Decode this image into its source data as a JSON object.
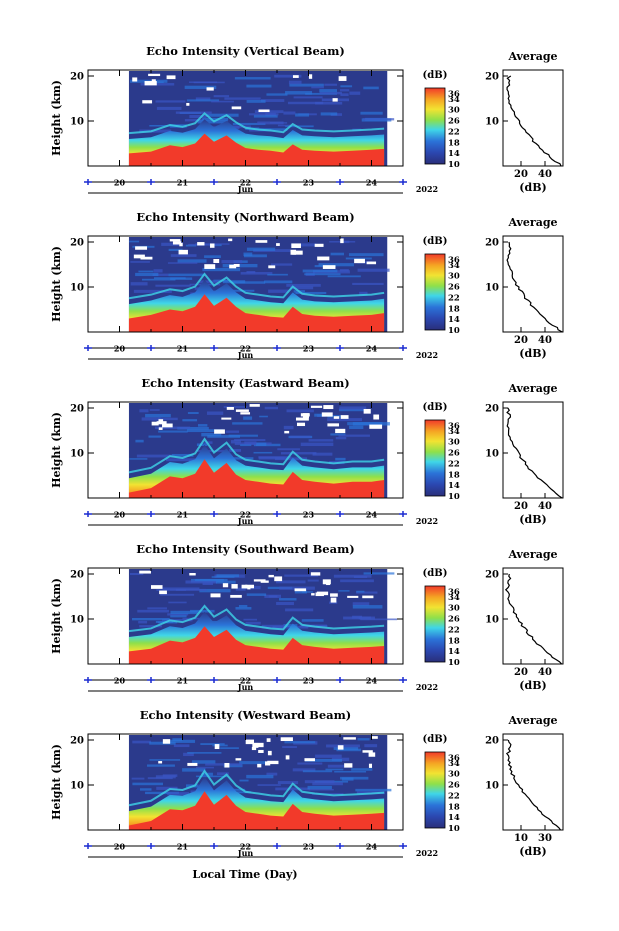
{
  "colors": {
    "background_low": "#2b3a8c",
    "mid_blue": "#2b73d8",
    "cyan": "#3fd6e8",
    "green": "#8fe04a",
    "yellow": "#f2e332",
    "orange": "#f5a623",
    "red": "#f23a2a",
    "tick_marker": "#1a2bd0"
  },
  "colorbar": {
    "unit": "(dB)",
    "ticks": [
      "36",
      "34",
      "30",
      "26",
      "22",
      "18",
      "14",
      "10"
    ],
    "min": 10,
    "max": 38
  },
  "xaxis": {
    "day_labels": [
      "20",
      "21",
      "22",
      "23",
      "24"
    ],
    "month_label": "Jun",
    "year_label": "2022",
    "bottom_label": "Local Time (Day)"
  },
  "avg_title": "Average",
  "avg_xlabel": "(dB)",
  "chart_data": [
    {
      "type": "heatmap",
      "title": "Echo Intensity (Vertical Beam)",
      "ylabel": "Height (km)",
      "yticks": [
        "20",
        "10"
      ],
      "ylim": [
        0,
        20
      ],
      "xlim_days": [
        19.5,
        24.5
      ],
      "data_start_day": 20.15,
      "colorbar_range_db": [
        10,
        38
      ],
      "boundary_height_km": [
        [
          20.15,
          2.8
        ],
        [
          20.5,
          3.2
        ],
        [
          20.8,
          4.6
        ],
        [
          21.0,
          4.2
        ],
        [
          21.2,
          5.0
        ],
        [
          21.35,
          7.2
        ],
        [
          21.5,
          5.4
        ],
        [
          21.7,
          6.8
        ],
        [
          21.85,
          5.2
        ],
        [
          22.0,
          4.0
        ],
        [
          22.2,
          3.6
        ],
        [
          22.4,
          3.4
        ],
        [
          22.6,
          3.0
        ],
        [
          22.75,
          4.8
        ],
        [
          22.9,
          3.6
        ],
        [
          23.1,
          3.4
        ],
        [
          23.4,
          3.2
        ],
        [
          23.7,
          3.4
        ],
        [
          24.0,
          3.6
        ],
        [
          24.2,
          3.8
        ]
      ],
      "average": {
        "xticks": [
          "20",
          "40"
        ],
        "xlim": [
          10,
          50
        ],
        "yticks": [
          "20",
          "10"
        ]
      }
    },
    {
      "type": "heatmap",
      "title": "Echo Intensity (Northward Beam)",
      "ylabel": "Height (km)",
      "yticks": [
        "20",
        "10"
      ],
      "ylim": [
        0,
        20
      ],
      "xlim_days": [
        19.5,
        24.5
      ],
      "data_start_day": 20.15,
      "colorbar_range_db": [
        10,
        38
      ],
      "boundary_height_km": [
        [
          20.15,
          3.0
        ],
        [
          20.5,
          3.8
        ],
        [
          20.8,
          5.0
        ],
        [
          21.0,
          4.6
        ],
        [
          21.2,
          5.6
        ],
        [
          21.35,
          8.4
        ],
        [
          21.5,
          5.8
        ],
        [
          21.7,
          7.6
        ],
        [
          21.85,
          5.6
        ],
        [
          22.0,
          4.2
        ],
        [
          22.2,
          3.8
        ],
        [
          22.4,
          3.4
        ],
        [
          22.6,
          3.2
        ],
        [
          22.75,
          5.6
        ],
        [
          22.9,
          4.0
        ],
        [
          23.1,
          3.6
        ],
        [
          23.4,
          3.4
        ],
        [
          23.7,
          3.6
        ],
        [
          24.0,
          3.8
        ],
        [
          24.2,
          4.2
        ]
      ],
      "average": {
        "xticks": [
          "20",
          "40"
        ],
        "xlim": [
          0,
          50
        ],
        "yticks": [
          "20",
          "10"
        ]
      }
    },
    {
      "type": "heatmap",
      "title": "Echo Intensity (Eastward Beam)",
      "ylabel": "Height (km)",
      "yticks": [
        "20",
        "10"
      ],
      "ylim": [
        0,
        20
      ],
      "xlim_days": [
        19.5,
        24.5
      ],
      "data_start_day": 20.15,
      "colorbar_range_db": [
        10,
        38
      ],
      "boundary_height_km": [
        [
          20.15,
          1.2
        ],
        [
          20.5,
          2.2
        ],
        [
          20.8,
          4.8
        ],
        [
          21.0,
          4.4
        ],
        [
          21.2,
          5.4
        ],
        [
          21.35,
          8.6
        ],
        [
          21.5,
          5.6
        ],
        [
          21.7,
          7.8
        ],
        [
          21.85,
          5.2
        ],
        [
          22.0,
          4.0
        ],
        [
          22.2,
          3.6
        ],
        [
          22.4,
          3.2
        ],
        [
          22.6,
          3.0
        ],
        [
          22.75,
          5.8
        ],
        [
          22.9,
          4.0
        ],
        [
          23.1,
          3.6
        ],
        [
          23.4,
          3.2
        ],
        [
          23.7,
          3.6
        ],
        [
          24.0,
          3.6
        ],
        [
          24.2,
          4.0
        ]
      ],
      "average": {
        "xticks": [
          "20",
          "40"
        ],
        "xlim": [
          0,
          50
        ],
        "yticks": [
          "20",
          "10"
        ]
      }
    },
    {
      "type": "heatmap",
      "title": "Echo Intensity (Southward Beam)",
      "ylabel": "Height (km)",
      "yticks": [
        "20",
        "10"
      ],
      "ylim": [
        0,
        20
      ],
      "xlim_days": [
        19.5,
        24.5
      ],
      "data_start_day": 20.15,
      "colorbar_range_db": [
        10,
        38
      ],
      "boundary_height_km": [
        [
          20.15,
          2.8
        ],
        [
          20.5,
          3.4
        ],
        [
          20.8,
          5.2
        ],
        [
          21.0,
          4.8
        ],
        [
          21.2,
          5.8
        ],
        [
          21.35,
          8.4
        ],
        [
          21.5,
          6.0
        ],
        [
          21.7,
          7.6
        ],
        [
          21.85,
          5.4
        ],
        [
          22.0,
          4.2
        ],
        [
          22.2,
          3.8
        ],
        [
          22.4,
          3.4
        ],
        [
          22.6,
          3.2
        ],
        [
          22.75,
          5.8
        ],
        [
          22.9,
          4.2
        ],
        [
          23.1,
          3.8
        ],
        [
          23.4,
          3.4
        ],
        [
          23.7,
          3.6
        ],
        [
          24.0,
          3.8
        ],
        [
          24.2,
          4.0
        ]
      ],
      "average": {
        "xticks": [
          "20",
          "40"
        ],
        "xlim": [
          0,
          50
        ],
        "yticks": [
          "20",
          "10"
        ]
      }
    },
    {
      "type": "heatmap",
      "title": "Echo Intensity (Westward Beam)",
      "ylabel": "Height (km)",
      "yticks": [
        "20",
        "10"
      ],
      "ylim": [
        0,
        20
      ],
      "xlim_days": [
        19.5,
        24.5
      ],
      "data_start_day": 20.15,
      "colorbar_range_db": [
        10,
        38
      ],
      "boundary_height_km": [
        [
          20.15,
          1.0
        ],
        [
          20.5,
          2.0
        ],
        [
          20.8,
          4.6
        ],
        [
          21.0,
          4.4
        ],
        [
          21.2,
          5.4
        ],
        [
          21.35,
          8.6
        ],
        [
          21.5,
          5.6
        ],
        [
          21.7,
          7.8
        ],
        [
          21.85,
          5.4
        ],
        [
          22.0,
          4.0
        ],
        [
          22.2,
          3.6
        ],
        [
          22.4,
          3.2
        ],
        [
          22.6,
          3.0
        ],
        [
          22.75,
          5.8
        ],
        [
          22.9,
          4.0
        ],
        [
          23.1,
          3.6
        ],
        [
          23.4,
          3.2
        ],
        [
          23.7,
          3.4
        ],
        [
          24.0,
          3.6
        ],
        [
          24.2,
          3.8
        ]
      ],
      "average": {
        "xticks": [
          "10",
          "30"
        ],
        "xlim": [
          0,
          30
        ],
        "yticks": [
          "20",
          "10"
        ]
      }
    }
  ]
}
